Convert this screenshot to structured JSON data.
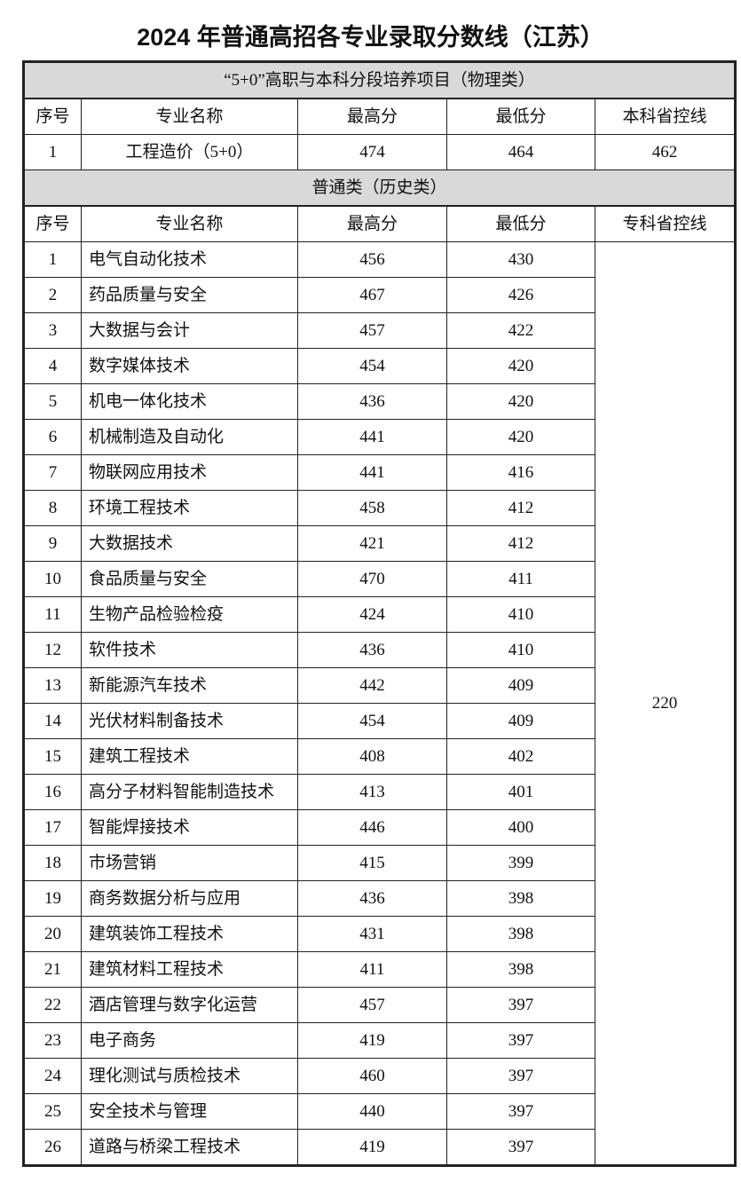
{
  "title": "2024 年普通高招各专业录取分数线（江苏）",
  "section1": {
    "title": "“5+0”高职与本科分段培养项目（物理类）",
    "headers": [
      "序号",
      "专业名称",
      "最高分",
      "最低分",
      "本科省控线"
    ],
    "rows": [
      {
        "no": "1",
        "name": "工程造价（5+0）",
        "max": "474",
        "min": "464",
        "control": "462"
      }
    ]
  },
  "section2": {
    "title": "普通类（历史类）",
    "headers": [
      "序号",
      "专业名称",
      "最高分",
      "最低分",
      "专科省控线"
    ],
    "control_line": "220",
    "rows": [
      {
        "no": "1",
        "name": "电气自动化技术",
        "max": "456",
        "min": "430"
      },
      {
        "no": "2",
        "name": "药品质量与安全",
        "max": "467",
        "min": "426"
      },
      {
        "no": "3",
        "name": "大数据与会计",
        "max": "457",
        "min": "422"
      },
      {
        "no": "4",
        "name": "数字媒体技术",
        "max": "454",
        "min": "420"
      },
      {
        "no": "5",
        "name": "机电一体化技术",
        "max": "436",
        "min": "420"
      },
      {
        "no": "6",
        "name": "机械制造及自动化",
        "max": "441",
        "min": "420"
      },
      {
        "no": "7",
        "name": "物联网应用技术",
        "max": "441",
        "min": "416"
      },
      {
        "no": "8",
        "name": "环境工程技术",
        "max": "458",
        "min": "412"
      },
      {
        "no": "9",
        "name": "大数据技术",
        "max": "421",
        "min": "412"
      },
      {
        "no": "10",
        "name": "食品质量与安全",
        "max": "470",
        "min": "411"
      },
      {
        "no": "11",
        "name": "生物产品检验检疫",
        "max": "424",
        "min": "410"
      },
      {
        "no": "12",
        "name": "软件技术",
        "max": "436",
        "min": "410"
      },
      {
        "no": "13",
        "name": "新能源汽车技术",
        "max": "442",
        "min": "409"
      },
      {
        "no": "14",
        "name": "光伏材料制备技术",
        "max": "454",
        "min": "409"
      },
      {
        "no": "15",
        "name": "建筑工程技术",
        "max": "408",
        "min": "402"
      },
      {
        "no": "16",
        "name": "高分子材料智能制造技术",
        "max": "413",
        "min": "401"
      },
      {
        "no": "17",
        "name": "智能焊接技术",
        "max": "446",
        "min": "400"
      },
      {
        "no": "18",
        "name": "市场营销",
        "max": "415",
        "min": "399"
      },
      {
        "no": "19",
        "name": "商务数据分析与应用",
        "max": "436",
        "min": "398"
      },
      {
        "no": "20",
        "name": "建筑装饰工程技术",
        "max": "431",
        "min": "398"
      },
      {
        "no": "21",
        "name": "建筑材料工程技术",
        "max": "411",
        "min": "398"
      },
      {
        "no": "22",
        "name": "酒店管理与数字化运营",
        "max": "457",
        "min": "397"
      },
      {
        "no": "23",
        "name": "电子商务",
        "max": "419",
        "min": "397"
      },
      {
        "no": "24",
        "name": "理化测试与质检技术",
        "max": "460",
        "min": "397"
      },
      {
        "no": "25",
        "name": "安全技术与管理",
        "max": "440",
        "min": "397"
      },
      {
        "no": "26",
        "name": "道路与桥梁工程技术",
        "max": "419",
        "min": "397"
      }
    ]
  }
}
